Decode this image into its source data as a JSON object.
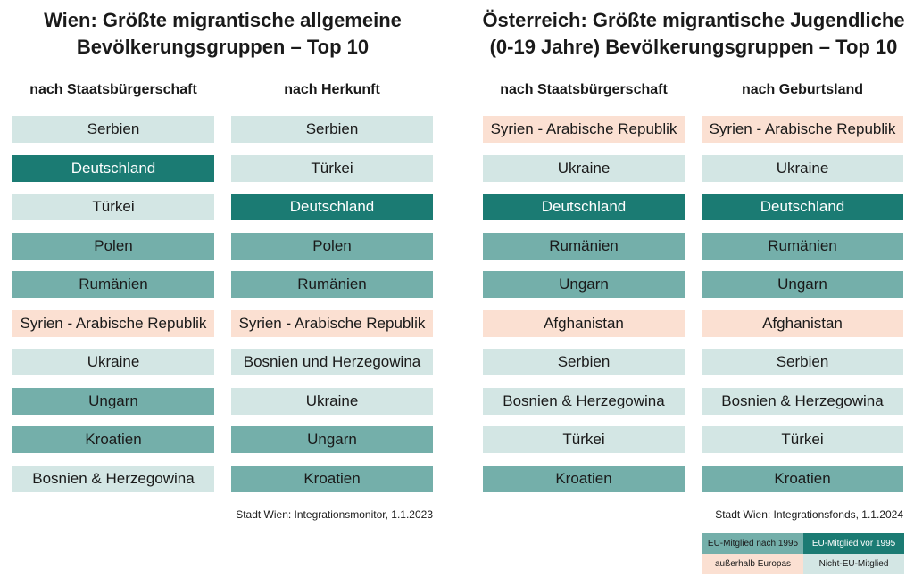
{
  "colors": {
    "eu_vor_1995": "#1b7b73",
    "eu_nach_1995": "#74afaa",
    "nicht_eu": "#d3e6e4",
    "ausserhalb_europas": "#fbe0d2"
  },
  "panels": [
    {
      "title_line1": "Wien: Größte migrantische allgemeine",
      "title_line2": "Bevölkerungsgruppen – Top 10",
      "source": "Stadt Wien: Integrationsmonitor, 1.1.2023",
      "columns": [
        {
          "heading": "nach Staatsbürgerschaft",
          "items": [
            {
              "label": "Serbien",
              "category": "nonEU"
            },
            {
              "label": "Deutschland",
              "category": "euvor"
            },
            {
              "label": "Türkei",
              "category": "nonEU"
            },
            {
              "label": "Polen",
              "category": "eunach"
            },
            {
              "label": "Rumänien",
              "category": "eunach"
            },
            {
              "label": "Syrien - Arabische Republik",
              "category": "outside"
            },
            {
              "label": "Ukraine",
              "category": "nonEU"
            },
            {
              "label": "Ungarn",
              "category": "eunach"
            },
            {
              "label": "Kroatien",
              "category": "eunach"
            },
            {
              "label": "Bosnien & Herzegowina",
              "category": "nonEU"
            }
          ]
        },
        {
          "heading": "nach Herkunft",
          "items": [
            {
              "label": "Serbien",
              "category": "nonEU"
            },
            {
              "label": "Türkei",
              "category": "nonEU"
            },
            {
              "label": "Deutschland",
              "category": "euvor"
            },
            {
              "label": "Polen",
              "category": "eunach"
            },
            {
              "label": "Rumänien",
              "category": "eunach"
            },
            {
              "label": "Syrien - Arabische Republik",
              "category": "outside"
            },
            {
              "label": "Bosnien und Herzegowina",
              "category": "nonEU"
            },
            {
              "label": "Ukraine",
              "category": "nonEU"
            },
            {
              "label": "Ungarn",
              "category": "eunach"
            },
            {
              "label": "Kroatien",
              "category": "eunach"
            }
          ]
        }
      ]
    },
    {
      "title_line1": "Österreich: Größte migrantische Jugendliche",
      "title_line2": "(0-19 Jahre) Bevölkerungsgruppen – Top 10",
      "source": "Stadt Wien: Integrationsfonds, 1.1.2024",
      "columns": [
        {
          "heading": "nach Staatsbürgerschaft",
          "items": [
            {
              "label": "Syrien - Arabische Republik",
              "category": "outside"
            },
            {
              "label": "Ukraine",
              "category": "nonEU"
            },
            {
              "label": "Deutschland",
              "category": "euvor"
            },
            {
              "label": "Rumänien",
              "category": "eunach"
            },
            {
              "label": "Ungarn",
              "category": "eunach"
            },
            {
              "label": "Afghanistan",
              "category": "outside"
            },
            {
              "label": "Serbien",
              "category": "nonEU"
            },
            {
              "label": "Bosnien & Herzegowina",
              "category": "nonEU"
            },
            {
              "label": "Türkei",
              "category": "nonEU"
            },
            {
              "label": "Kroatien",
              "category": "eunach"
            }
          ]
        },
        {
          "heading": "nach Geburtsland",
          "items": [
            {
              "label": "Syrien - Arabische Republik",
              "category": "outside"
            },
            {
              "label": "Ukraine",
              "category": "nonEU"
            },
            {
              "label": "Deutschland",
              "category": "euvor"
            },
            {
              "label": "Rumänien",
              "category": "eunach"
            },
            {
              "label": "Ungarn",
              "category": "eunach"
            },
            {
              "label": "Afghanistan",
              "category": "outside"
            },
            {
              "label": "Serbien",
              "category": "nonEU"
            },
            {
              "label": "Bosnien & Herzegowina",
              "category": "nonEU"
            },
            {
              "label": "Türkei",
              "category": "nonEU"
            },
            {
              "label": "Kroatien",
              "category": "eunach"
            }
          ]
        }
      ]
    }
  ],
  "legend": {
    "eu_nach_1995": "EU-Mitglied nach 1995",
    "eu_vor_1995": "EU-Mitglied vor 1995",
    "ausserhalb_europas": "außerhalb Europas",
    "nicht_eu": "Nicht-EU-Mitglied"
  },
  "chart_data": {
    "type": "table",
    "tables": [
      {
        "title": "Wien: Größte migrantische allgemeine Bevölkerungsgruppen – Top 10",
        "columns": [
          "nach Staatsbürgerschaft",
          "nach Herkunft"
        ]
      },
      {
        "title": "Österreich: Größte migrantische Jugendliche (0-19 Jahre) Bevölkerungsgruppen – Top 10",
        "columns": [
          "nach Staatsbürgerschaft",
          "nach Geburtsland"
        ]
      }
    ],
    "legend": [
      "EU-Mitglied nach 1995",
      "EU-Mitglied vor 1995",
      "außerhalb Europas",
      "Nicht-EU-Mitglied"
    ]
  }
}
